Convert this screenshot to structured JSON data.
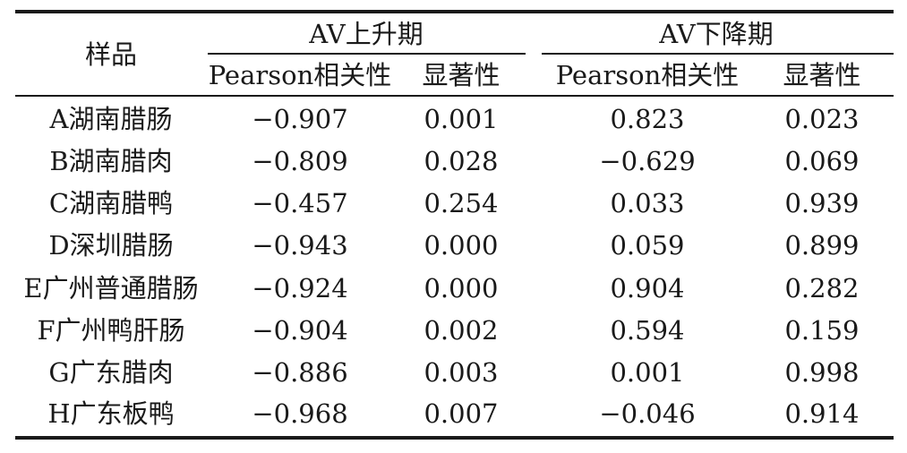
{
  "table": {
    "header": {
      "sample": "样品",
      "group_rise": "AV上升期",
      "group_fall": "AV下降期",
      "rise_pearson": "Pearson相关性",
      "rise_sig": "显著性",
      "fall_pearson": "Pearson相关性",
      "fall_sig": "显著性"
    },
    "rows": [
      {
        "sample": "A湖南腊肠",
        "rise_pearson": "−0.907",
        "rise_sig": "0.001",
        "fall_pearson": "0.823",
        "fall_sig": "0.023"
      },
      {
        "sample": "B湖南腊肉",
        "rise_pearson": "−0.809",
        "rise_sig": "0.028",
        "fall_pearson": "−0.629",
        "fall_sig": "0.069"
      },
      {
        "sample": "C湖南腊鸭",
        "rise_pearson": "−0.457",
        "rise_sig": "0.254",
        "fall_pearson": "0.033",
        "fall_sig": "0.939"
      },
      {
        "sample": "D深圳腊肠",
        "rise_pearson": "−0.943",
        "rise_sig": "0.000",
        "fall_pearson": "0.059",
        "fall_sig": "0.899"
      },
      {
        "sample": "E广州普通腊肠",
        "rise_pearson": "−0.924",
        "rise_sig": "0.000",
        "fall_pearson": "0.904",
        "fall_sig": "0.282"
      },
      {
        "sample": "F广州鸭肝肠",
        "rise_pearson": "−0.904",
        "rise_sig": "0.002",
        "fall_pearson": "0.594",
        "fall_sig": "0.159"
      },
      {
        "sample": "G广东腊肉",
        "rise_pearson": "−0.886",
        "rise_sig": "0.003",
        "fall_pearson": "0.001",
        "fall_sig": "0.998"
      },
      {
        "sample": "H广东板鸭",
        "rise_pearson": "−0.968",
        "rise_sig": "0.007",
        "fall_pearson": "−0.046",
        "fall_sig": "0.914"
      }
    ]
  }
}
